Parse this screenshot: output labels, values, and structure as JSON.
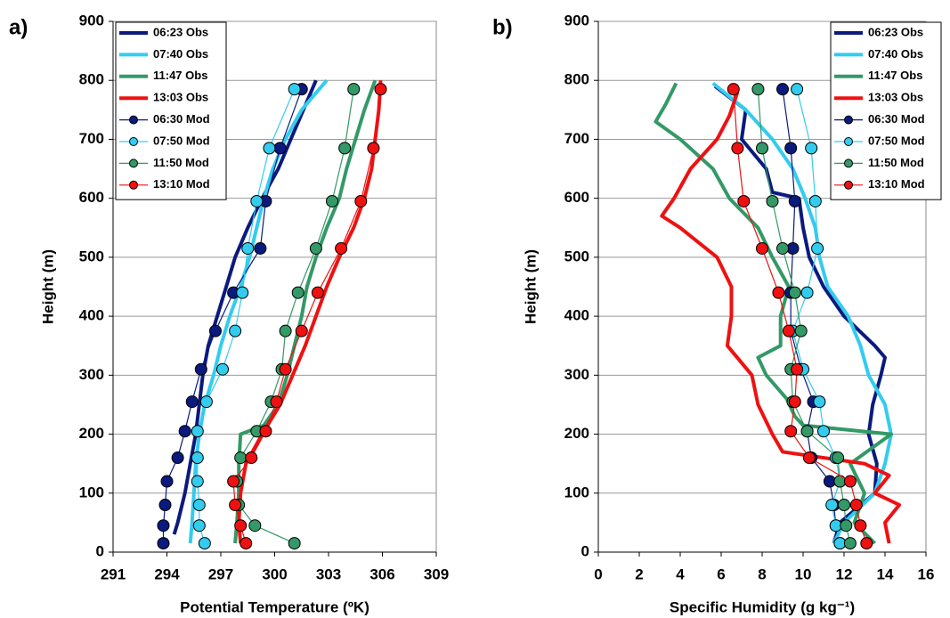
{
  "chart_data": [
    {
      "type": "line",
      "panel_label": "a)",
      "x_label": "Potential Temperature (ºK)",
      "y_label": "Height (m)",
      "xlim": [
        291,
        309
      ],
      "xticks": [
        291,
        294,
        297,
        300,
        303,
        306,
        309
      ],
      "ylim": [
        0,
        900
      ],
      "yticks": [
        0,
        100,
        200,
        300,
        400,
        500,
        600,
        700,
        800,
        900
      ],
      "grid": true,
      "legend": "upper left",
      "series": [
        {
          "name": "06:23 Obs",
          "color": "#0b1a7e",
          "x": [
            294.4,
            294.6,
            295.0,
            295.3,
            295.6,
            295.8,
            296.0,
            296.3,
            296.8,
            297.3,
            297.8,
            298.5,
            299.3,
            300.2,
            300.9,
            301.6,
            302.3
          ],
          "values": [
            30,
            50,
            100,
            150,
            200,
            250,
            300,
            350,
            400,
            450,
            500,
            550,
            600,
            650,
            700,
            750,
            800
          ]
        },
        {
          "name": "07:40 Obs",
          "color": "#33ccee",
          "x": [
            295.3,
            295.4,
            295.5,
            295.6,
            295.8,
            296.1,
            296.6,
            297.0,
            297.5,
            298.1,
            298.6,
            299.0,
            299.4,
            299.9,
            300.6,
            301.5,
            302.9
          ],
          "values": [
            15,
            50,
            100,
            150,
            200,
            250,
            300,
            350,
            400,
            450,
            500,
            550,
            600,
            650,
            700,
            750,
            800
          ]
        },
        {
          "name": "11:47 Obs",
          "color": "#339966",
          "x": [
            297.8,
            297.9,
            298.0,
            298.0,
            298.1,
            299.4,
            300.2,
            300.7,
            301.1,
            301.5,
            301.8,
            302.3,
            302.9,
            303.6,
            304.0,
            304.5,
            305.0,
            305.6
          ],
          "values": [
            15,
            50,
            100,
            150,
            200,
            215,
            250,
            300,
            350,
            400,
            450,
            500,
            550,
            600,
            650,
            700,
            750,
            800
          ]
        },
        {
          "name": "13:03 Obs",
          "color": "#ee1111",
          "x": [
            298.1,
            298.0,
            298.1,
            298.4,
            299.3,
            300.3,
            301.0,
            301.7,
            302.3,
            302.9,
            303.6,
            304.4,
            305.0,
            305.4,
            305.6,
            305.8,
            305.9
          ],
          "values": [
            15,
            50,
            100,
            150,
            200,
            250,
            300,
            350,
            400,
            450,
            500,
            550,
            600,
            650,
            700,
            750,
            800
          ]
        },
        {
          "name": "06:30 Mod",
          "color": "#0b1a7e",
          "marker": "circle",
          "x": [
            293.8,
            293.8,
            293.9,
            294.0,
            294.6,
            295.0,
            295.4,
            295.9,
            296.7,
            297.7,
            299.2,
            299.5,
            300.3,
            301.5
          ],
          "values": [
            15,
            45,
            80,
            120,
            160,
            205,
            255,
            310,
            375,
            440,
            515,
            595,
            685,
            785
          ]
        },
        {
          "name": "07:50 Mod",
          "color": "#33ccee",
          "marker": "circle",
          "x": [
            296.1,
            295.8,
            295.8,
            295.7,
            295.7,
            295.7,
            296.2,
            297.1,
            297.8,
            298.2,
            298.5,
            299.0,
            299.7,
            301.1
          ],
          "values": [
            15,
            45,
            80,
            120,
            160,
            205,
            255,
            310,
            375,
            440,
            515,
            595,
            685,
            785
          ]
        },
        {
          "name": "11:50 Mod",
          "color": "#339966",
          "marker": "circle",
          "x": [
            301.1,
            298.9,
            298.0,
            297.9,
            298.1,
            299.0,
            299.8,
            300.4,
            300.6,
            301.3,
            302.3,
            303.2,
            303.9,
            304.4
          ],
          "values": [
            15,
            45,
            80,
            120,
            160,
            205,
            255,
            310,
            375,
            440,
            515,
            595,
            685,
            785
          ]
        },
        {
          "name": "13:10 Mod",
          "color": "#ee1111",
          "marker": "circle",
          "x": [
            298.4,
            298.1,
            297.8,
            297.7,
            298.7,
            299.5,
            300.1,
            300.6,
            301.5,
            302.4,
            303.7,
            304.8,
            305.5,
            305.9
          ],
          "values": [
            15,
            45,
            80,
            120,
            160,
            205,
            255,
            310,
            375,
            440,
            515,
            595,
            685,
            785
          ]
        }
      ]
    },
    {
      "type": "line",
      "panel_label": "b)",
      "x_label": "Specific Humidity (g kg⁻¹)",
      "y_label": "Height (m)",
      "xlim": [
        0,
        16
      ],
      "xticks": [
        0,
        2,
        4,
        6,
        8,
        10,
        12,
        14,
        16
      ],
      "ylim": [
        0,
        900
      ],
      "yticks": [
        0,
        100,
        200,
        300,
        400,
        500,
        600,
        700,
        800,
        900
      ],
      "grid": true,
      "legend": "upper right",
      "series": [
        {
          "name": "06:23 Obs",
          "color": "#0b1a7e",
          "x": [
            11.5,
            11.8,
            13.5,
            13.6,
            13.2,
            13.4,
            13.8,
            14.0,
            13.5,
            12.0,
            11.0,
            10.3,
            10.0,
            9.8,
            8.5,
            8.2,
            7.0,
            7.2,
            5.7
          ],
          "values": [
            15,
            50,
            100,
            150,
            200,
            250,
            300,
            330,
            350,
            400,
            450,
            500,
            550,
            600,
            610,
            650,
            700,
            750,
            790
          ]
        },
        {
          "name": "07:40 Obs",
          "color": "#33ccee",
          "x": [
            11.5,
            12.0,
            13.5,
            14.0,
            14.3,
            14.0,
            13.2,
            12.8,
            12.2,
            11.2,
            10.8,
            10.6,
            10.1,
            9.5,
            8.5,
            7.2,
            5.6
          ],
          "values": [
            15,
            50,
            100,
            150,
            200,
            250,
            300,
            350,
            400,
            450,
            500,
            550,
            600,
            650,
            700,
            750,
            795
          ]
        },
        {
          "name": "11:47 Obs",
          "color": "#339966",
          "x": [
            13.5,
            12.5,
            13.0,
            12.3,
            14.3,
            10.0,
            9.6,
            9.2,
            8.2,
            7.8,
            8.9,
            8.9,
            9.3,
            8.5,
            7.8,
            6.4,
            5.6,
            4.0,
            2.8,
            3.3,
            3.8
          ],
          "values": [
            15,
            50,
            100,
            150,
            200,
            215,
            230,
            260,
            300,
            330,
            350,
            400,
            450,
            500,
            550,
            600,
            650,
            700,
            730,
            760,
            795
          ]
        },
        {
          "name": "13:03 Obs",
          "color": "#ee1111",
          "x": [
            14.2,
            14.0,
            14.7,
            13.5,
            14.2,
            13.0,
            9.0,
            8.5,
            7.8,
            7.5,
            6.3,
            6.5,
            6.5,
            5.8,
            4.0,
            3.1,
            3.7,
            4.5,
            5.8,
            6.4,
            6.8
          ],
          "values": [
            15,
            50,
            80,
            100,
            130,
            150,
            170,
            200,
            250,
            300,
            350,
            400,
            450,
            500,
            550,
            570,
            600,
            650,
            700,
            740,
            780
          ]
        },
        {
          "name": "06:30 Mod",
          "color": "#0b1a7e",
          "marker": "circle",
          "x": [
            11.8,
            11.6,
            11.5,
            11.3,
            10.4,
            10.2,
            10.5,
            9.9,
            9.4,
            9.4,
            9.5,
            9.6,
            9.4,
            9.0
          ],
          "values": [
            15,
            45,
            80,
            120,
            160,
            205,
            255,
            310,
            375,
            440,
            515,
            595,
            685,
            785
          ]
        },
        {
          "name": "07:50 Mod",
          "color": "#33ccee",
          "marker": "circle",
          "x": [
            11.8,
            11.6,
            11.4,
            11.8,
            11.6,
            11.0,
            10.8,
            10.0,
            9.5,
            10.2,
            10.7,
            10.6,
            10.4,
            9.7
          ],
          "values": [
            15,
            45,
            80,
            120,
            160,
            205,
            255,
            310,
            375,
            440,
            515,
            595,
            685,
            785
          ]
        },
        {
          "name": "11:50 Mod",
          "color": "#339966",
          "marker": "circle",
          "x": [
            12.3,
            12.1,
            12.0,
            11.8,
            11.7,
            10.2,
            9.5,
            9.4,
            9.9,
            9.6,
            9.0,
            8.5,
            8.0,
            7.8
          ],
          "values": [
            15,
            45,
            80,
            120,
            160,
            205,
            255,
            310,
            375,
            440,
            515,
            595,
            685,
            785
          ]
        },
        {
          "name": "13:10 Mod",
          "color": "#ee1111",
          "marker": "circle",
          "x": [
            13.1,
            12.8,
            12.6,
            12.3,
            10.3,
            9.4,
            9.6,
            9.7,
            9.3,
            8.8,
            8.0,
            7.1,
            6.8,
            6.6
          ],
          "values": [
            15,
            45,
            80,
            120,
            160,
            205,
            255,
            310,
            375,
            440,
            515,
            595,
            685,
            785
          ]
        }
      ]
    }
  ]
}
